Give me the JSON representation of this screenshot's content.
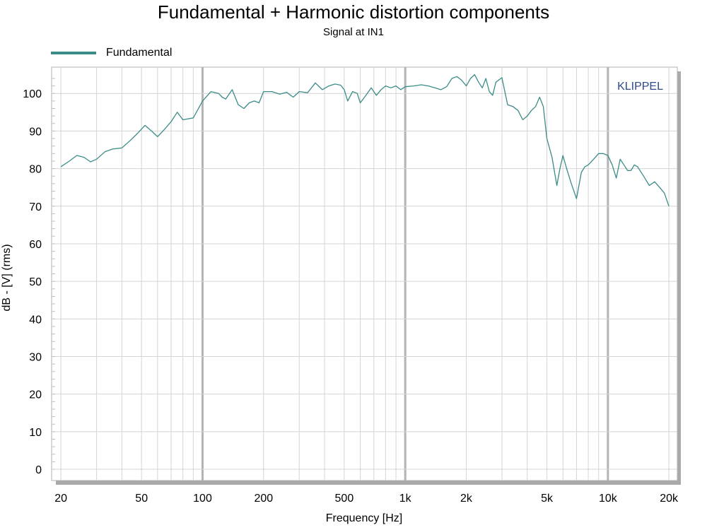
{
  "chart_data": {
    "type": "line",
    "title": "Fundamental + Harmonic distortion components",
    "subtitle": "Signal at IN1",
    "xlabel": "Frequency [Hz]",
    "ylabel": "dB - [V]  (rms)",
    "x_scale": "log",
    "xlim": [
      18,
      22000
    ],
    "ylim": [
      -3,
      107
    ],
    "x_ticks": [
      {
        "value": 20,
        "label": "20"
      },
      {
        "value": 50,
        "label": "50"
      },
      {
        "value": 100,
        "label": "100"
      },
      {
        "value": 200,
        "label": "200"
      },
      {
        "value": 500,
        "label": "500"
      },
      {
        "value": 1000,
        "label": "1k"
      },
      {
        "value": 2000,
        "label": "2k"
      },
      {
        "value": 5000,
        "label": "5k"
      },
      {
        "value": 10000,
        "label": "10k"
      },
      {
        "value": 20000,
        "label": "20k"
      }
    ],
    "y_ticks": [
      0,
      10,
      20,
      30,
      40,
      50,
      60,
      70,
      80,
      90,
      100
    ],
    "grid": true,
    "legend_position": "top-left",
    "watermark": "KLIPPEL",
    "series": [
      {
        "name": "Fundamental",
        "color": "#3b8c88",
        "x": [
          20,
          22,
          24,
          26,
          28,
          30,
          33,
          36,
          40,
          44,
          48,
          52,
          56,
          60,
          65,
          70,
          75,
          80,
          90,
          100,
          110,
          120,
          125,
          130,
          140,
          150,
          160,
          170,
          180,
          190,
          200,
          220,
          240,
          260,
          280,
          300,
          330,
          360,
          390,
          420,
          450,
          480,
          500,
          520,
          550,
          580,
          600,
          640,
          680,
          720,
          760,
          800,
          850,
          900,
          950,
          1000,
          1100,
          1200,
          1300,
          1400,
          1500,
          1600,
          1700,
          1800,
          1900,
          2000,
          2100,
          2200,
          2300,
          2400,
          2500,
          2600,
          2700,
          2800,
          3000,
          3200,
          3400,
          3600,
          3800,
          4000,
          4200,
          4400,
          4600,
          4800,
          5000,
          5300,
          5600,
          5800,
          6000,
          6300,
          6600,
          7000,
          7400,
          7700,
          8000,
          8500,
          9000,
          9500,
          10000,
          10500,
          11000,
          11500,
          12000,
          12500,
          13000,
          13500,
          14000,
          15000,
          16000,
          17000,
          18000,
          19000,
          20000
        ],
        "y": [
          80.5,
          82.0,
          83.5,
          83.0,
          81.8,
          82.5,
          84.5,
          85.2,
          85.5,
          87.5,
          89.5,
          91.5,
          90.0,
          88.5,
          90.5,
          92.5,
          95.0,
          93.0,
          93.5,
          98.0,
          100.5,
          100.0,
          99.0,
          98.5,
          101.0,
          97.0,
          96.0,
          97.5,
          98.0,
          97.5,
          100.5,
          100.5,
          99.8,
          100.3,
          99.0,
          100.5,
          100.2,
          102.8,
          101.0,
          102.0,
          102.5,
          102.2,
          101.0,
          98.0,
          100.5,
          100.0,
          97.5,
          99.5,
          101.5,
          99.5,
          101.0,
          102.0,
          101.5,
          102.0,
          101.0,
          101.8,
          102.0,
          102.3,
          102.0,
          101.5,
          101.0,
          101.8,
          104.0,
          104.5,
          103.5,
          102.0,
          104.0,
          105.0,
          103.0,
          101.5,
          104.0,
          100.5,
          99.5,
          103.0,
          104.2,
          97.0,
          96.5,
          95.5,
          93.0,
          94.0,
          95.5,
          96.5,
          99.0,
          96.5,
          88.0,
          83.0,
          75.5,
          80.0,
          83.5,
          79.5,
          76.0,
          72.0,
          79.0,
          80.5,
          81.0,
          82.5,
          84.0,
          84.0,
          83.5,
          81.0,
          77.5,
          82.5,
          81.0,
          79.5,
          79.5,
          81.0,
          80.5,
          78.0,
          75.5,
          76.5,
          75.0,
          73.5,
          70.0
        ]
      }
    ]
  }
}
